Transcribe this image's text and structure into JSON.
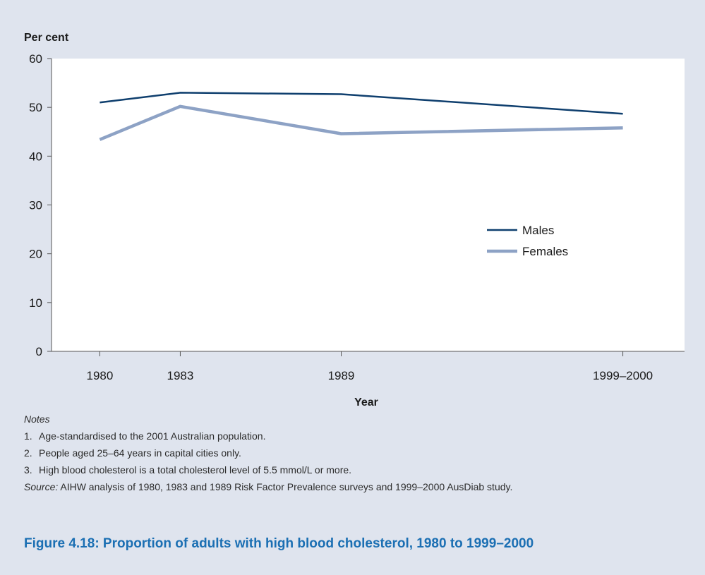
{
  "figure": {
    "caption": "Figure 4.18: Proportion of adults with high blood cholesterol, 1980 to 1999–2000"
  },
  "chart_data": {
    "type": "line",
    "ylabel": "Per cent",
    "xlabel": "Year",
    "categories": [
      "1980",
      "1983",
      "1989",
      "1999–2000"
    ],
    "x": [
      1980,
      1983,
      1989,
      1999.5
    ],
    "ylim": [
      0,
      60
    ],
    "yticks": [
      0,
      10,
      20,
      30,
      40,
      50,
      60
    ],
    "grid": false,
    "legend_position": "center-right",
    "series": [
      {
        "name": "Males",
        "values": [
          51.0,
          53.0,
          52.7,
          48.7
        ],
        "color": "#0f3f6e"
      },
      {
        "name": "Females",
        "values": [
          43.4,
          50.2,
          44.6,
          45.8
        ],
        "color": "#8da2c5"
      }
    ],
    "colors": {
      "background": "#dfe4ee",
      "plot_background": "#ffffff"
    }
  },
  "notes": {
    "heading": "Notes",
    "items": [
      {
        "num": "1.",
        "text": "Age-standardised to the 2001 Australian population."
      },
      {
        "num": "2.",
        "text": "People aged 25–64 years in capital cities only."
      },
      {
        "num": "3.",
        "text": "High blood cholesterol is a total cholesterol level of 5.5 mmol/L or more."
      }
    ],
    "source_label": "Source:",
    "source_text": " AIHW analysis of 1980, 1983 and 1989 Risk Factor Prevalence surveys and 1999–2000 AusDiab study."
  }
}
